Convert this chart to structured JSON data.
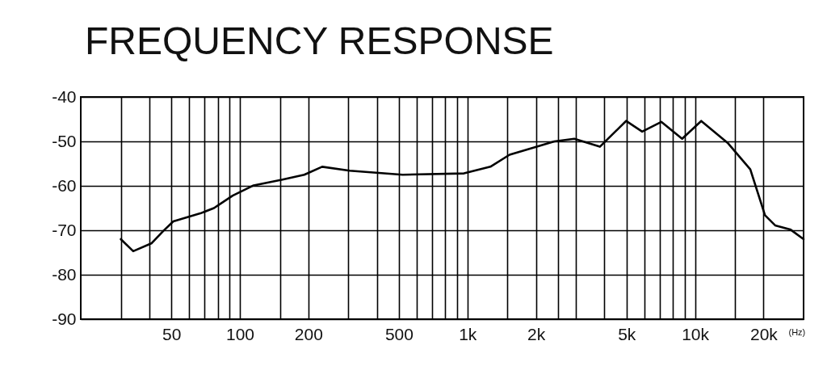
{
  "chart_data": {
    "type": "line",
    "title": "FREQUENCY RESPONSE",
    "xlabel": "(Hz)",
    "log": "x",
    "grid": true,
    "marker": "none",
    "line_style": "solid",
    "x": [
      30,
      34,
      41,
      46,
      51,
      67,
      77,
      93,
      115,
      154,
      192,
      230,
      304,
      519,
      966,
      1262,
      1532,
      1950,
      2410,
      2950,
      3820,
      4980,
      5860,
      7110,
      8780,
      10650,
      13900,
      17500,
      20300,
      22500,
      26200,
      30000
    ],
    "series": [
      {
        "color": "#000000",
        "values": [
          -72.0,
          -74.7,
          -72.9,
          -70.2,
          -68.0,
          -66.2,
          -65.0,
          -62.2,
          -59.9,
          -58.6,
          -57.5,
          -55.7,
          -56.6,
          -57.5,
          -57.2,
          -55.7,
          -53.0,
          -51.4,
          -50.0,
          -49.4,
          -51.2,
          -45.4,
          -47.8,
          -45.6,
          -49.4,
          -45.4,
          -50.3,
          -56.3,
          -66.6,
          -68.9,
          -69.8,
          -72.0
        ]
      }
    ],
    "xlim": [
      20,
      30000
    ],
    "xticks": [
      {
        "value": 30,
        "label": null
      },
      {
        "value": 40,
        "label": null
      },
      50,
      {
        "value": 60,
        "label": null
      },
      {
        "value": 70,
        "label": null
      },
      {
        "value": 80,
        "label": null
      },
      {
        "value": 90,
        "label": null
      },
      100,
      {
        "value": 150,
        "label": null
      },
      200,
      {
        "value": 300,
        "label": null
      },
      {
        "value": 400,
        "label": null
      },
      500,
      {
        "value": 600,
        "label": null
      },
      {
        "value": 700,
        "label": null
      },
      {
        "value": 800,
        "label": null
      },
      {
        "value": 900,
        "label": null
      },
      {
        "value": 1000,
        "label": "1k"
      },
      {
        "value": 1500,
        "label": null
      },
      {
        "value": 2000,
        "label": "2k"
      },
      {
        "value": 2500,
        "label": null
      },
      {
        "value": 3000,
        "label": null
      },
      {
        "value": 4000,
        "label": null
      },
      {
        "value": 5000,
        "label": "5k"
      },
      {
        "value": 6000,
        "label": null
      },
      {
        "value": 7000,
        "label": null
      },
      {
        "value": 8000,
        "label": null
      },
      {
        "value": 9000,
        "label": null
      },
      {
        "value": 10000,
        "label": "10k"
      },
      {
        "value": 15000,
        "label": null
      },
      {
        "value": 20000,
        "label": "20k"
      }
    ],
    "ylim": [
      -90,
      -40
    ],
    "yticks": [
      -90,
      -80,
      -70,
      -60,
      -50,
      -40
    ]
  }
}
